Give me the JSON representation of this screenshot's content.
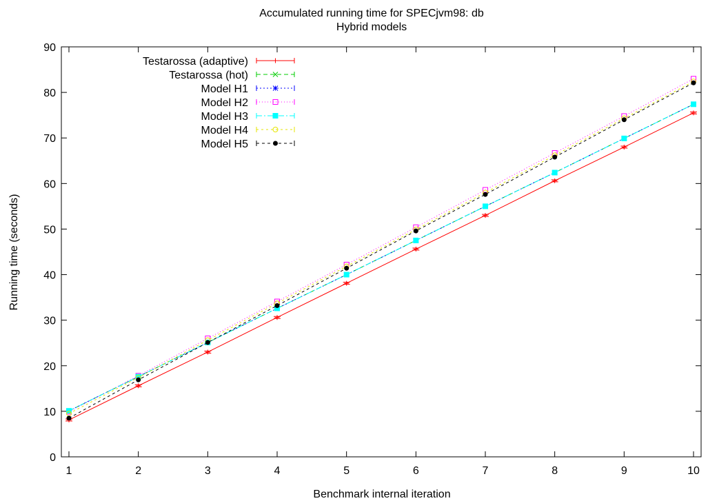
{
  "chart_data": {
    "type": "line",
    "title": "Accumulated running time for SPECjvm98: db",
    "subtitle": "Hybrid models",
    "xlabel": "Benchmark internal iteration",
    "ylabel": "Running time (seconds)",
    "xlim": [
      1,
      10
    ],
    "ylim": [
      0,
      90
    ],
    "xticks": [
      1,
      2,
      3,
      4,
      5,
      6,
      7,
      8,
      9,
      10
    ],
    "yticks": [
      0,
      10,
      20,
      30,
      40,
      50,
      60,
      70,
      80,
      90
    ],
    "grid": false,
    "legend_position": "top-left",
    "x": [
      1,
      2,
      3,
      4,
      5,
      6,
      7,
      8,
      9,
      10
    ],
    "series": [
      {
        "name": "Testarossa (adaptive)",
        "color": "#ff0000",
        "marker": "plus",
        "dash": "",
        "errorbar": true,
        "values": [
          8.1,
          15.6,
          23.0,
          30.6,
          38.1,
          45.6,
          53.0,
          60.6,
          68.0,
          75.5
        ]
      },
      {
        "name": "Testarossa (hot)",
        "color": "#00cc00",
        "marker": "cross",
        "dash": "6,4",
        "values": [
          10.1,
          17.6,
          25.1,
          32.6,
          40.0,
          47.5,
          55.0,
          62.4,
          69.9,
          77.4
        ]
      },
      {
        "name": "Model H1",
        "color": "#0000ff",
        "marker": "star",
        "dash": "2,3",
        "values": [
          10.1,
          17.6,
          25.1,
          32.6,
          40.0,
          47.5,
          55.0,
          62.4,
          69.9,
          77.4
        ]
      },
      {
        "name": "Model H2",
        "color": "#ff00ff",
        "marker": "square",
        "dash": "1,3",
        "values": [
          9.9,
          17.8,
          26.0,
          34.1,
          42.2,
          50.4,
          58.6,
          66.7,
          74.8,
          83.0
        ]
      },
      {
        "name": "Model H3",
        "color": "#00ffff",
        "marker": "filled-square",
        "dash": "8,3,2,3",
        "values": [
          10.1,
          17.6,
          25.1,
          32.6,
          40.0,
          47.5,
          55.0,
          62.4,
          69.9,
          77.4
        ]
      },
      {
        "name": "Model H4",
        "color": "#e6e600",
        "marker": "circle",
        "dash": "3,4",
        "values": [
          9.5,
          17.4,
          25.6,
          33.7,
          41.8,
          49.9,
          58.0,
          66.2,
          74.3,
          82.4
        ]
      },
      {
        "name": "Model H5",
        "color": "#000000",
        "marker": "filled-circle",
        "dash": "4,4",
        "values": [
          8.5,
          16.9,
          25.1,
          33.2,
          41.4,
          49.6,
          57.6,
          65.8,
          74.0,
          82.1
        ]
      }
    ]
  }
}
